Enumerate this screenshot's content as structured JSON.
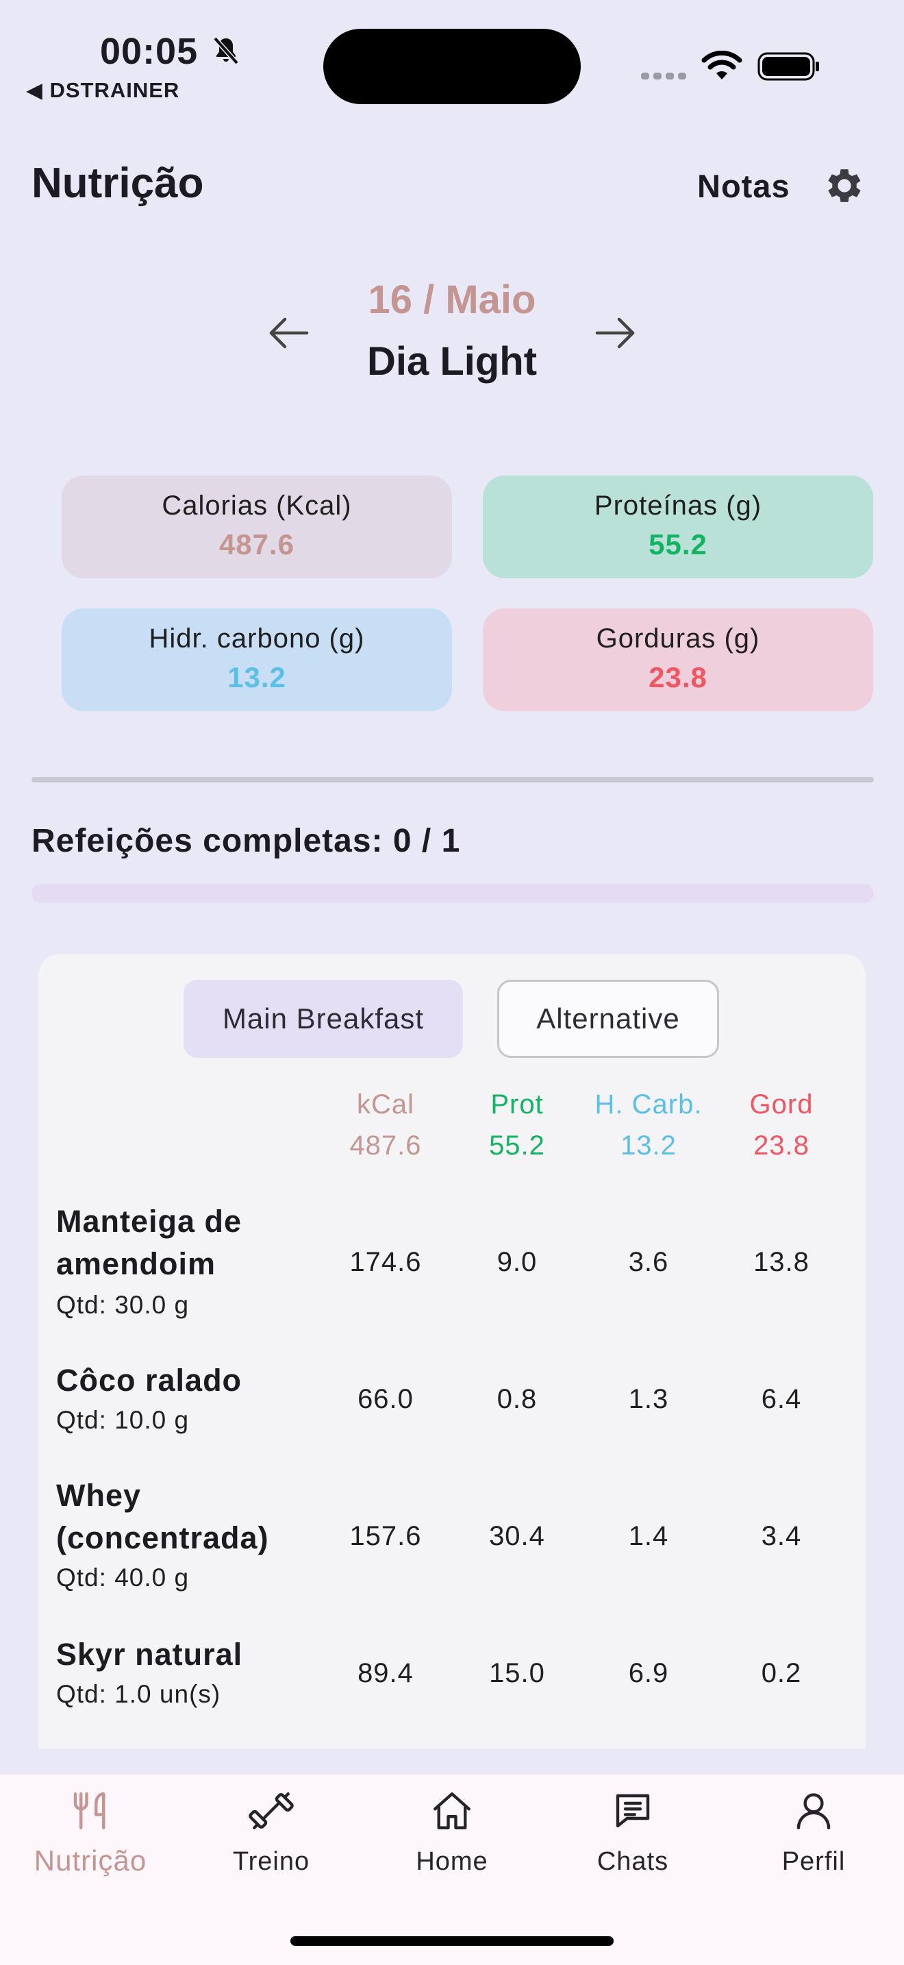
{
  "status_bar": {
    "time": "00:05",
    "back_app": "◀ DSTRAINER"
  },
  "header": {
    "title": "Nutrição",
    "notes_label": "Notas"
  },
  "day_nav": {
    "date": "16 / Maio",
    "day_type": "Dia Light"
  },
  "macros": {
    "kcal": {
      "label": "Calorias (Kcal)",
      "value": "487.6"
    },
    "prot": {
      "label": "Proteínas (g)",
      "value": "55.2"
    },
    "carb": {
      "label": "Hidr. carbono (g)",
      "value": "13.2"
    },
    "fat": {
      "label": "Gorduras (g)",
      "value": "23.8"
    }
  },
  "meals_progress": {
    "label": "Refeições completas: 0 / 1",
    "fraction": 0.0
  },
  "meal": {
    "tabs": [
      {
        "label": "Main Breakfast",
        "selected": true
      },
      {
        "label": "Alternative",
        "selected": false
      }
    ],
    "columns": [
      {
        "label": "kCal",
        "total": "487.6"
      },
      {
        "label": "Prot",
        "total": "55.2"
      },
      {
        "label": "H. Carb.",
        "total": "13.2"
      },
      {
        "label": "Gord",
        "total": "23.8"
      }
    ],
    "foods": [
      {
        "name": "Manteiga de amendoim",
        "qty": "Qtd: 30.0 g",
        "values": [
          "174.6",
          "9.0",
          "3.6",
          "13.8"
        ]
      },
      {
        "name": "Côco ralado",
        "qty": "Qtd: 10.0 g",
        "values": [
          "66.0",
          "0.8",
          "1.3",
          "6.4"
        ]
      },
      {
        "name": "Whey (concentrada)",
        "qty": "Qtd: 40.0 g",
        "values": [
          "157.6",
          "30.4",
          "1.4",
          "3.4"
        ]
      },
      {
        "name": "Skyr natural",
        "qty": "Qtd: 1.0 un(s)",
        "values": [
          "89.4",
          "15.0",
          "6.9",
          "0.2"
        ]
      }
    ]
  },
  "bottom_nav": {
    "items": [
      {
        "label": "Nutrição",
        "icon": "fork-knife-icon",
        "active": true
      },
      {
        "label": "Treino",
        "icon": "dumbbell-icon",
        "active": false
      },
      {
        "label": "Home",
        "icon": "home-icon",
        "active": false
      },
      {
        "label": "Chats",
        "icon": "chat-icon",
        "active": false
      },
      {
        "label": "Perfil",
        "icon": "person-icon",
        "active": false
      }
    ]
  },
  "colors": {
    "background": "#e9e8f7",
    "kcal": "#c49591",
    "prot": "#12b462",
    "carb": "#5bbfe8",
    "fat": "#ee5661"
  }
}
